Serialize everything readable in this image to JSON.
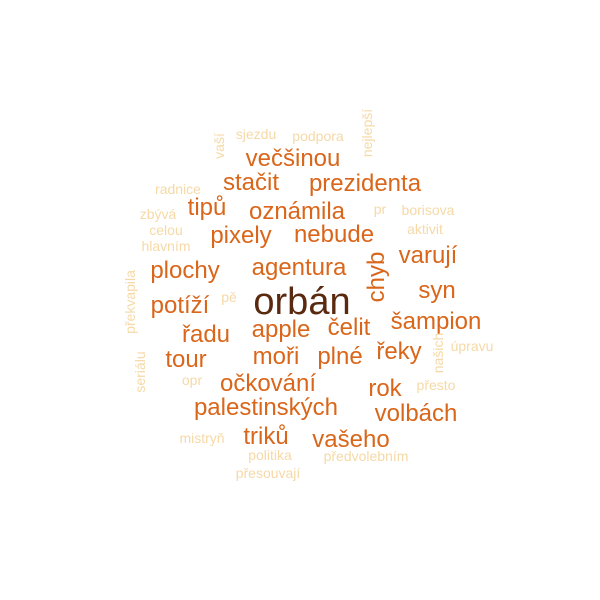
{
  "palette": {
    "dark": "#5a2a10",
    "strong": "#d9661a",
    "medium": "#e8832a",
    "light": "#f6d9a6"
  },
  "words": [
    {
      "text": "orbán",
      "weight": 1.0,
      "tone": "dark"
    },
    {
      "text": "večšinou",
      "weight": 0.6,
      "tone": "strong"
    },
    {
      "text": "stačit",
      "weight": 0.6,
      "tone": "strong"
    },
    {
      "text": "prezidenta",
      "weight": 0.6,
      "tone": "strong"
    },
    {
      "text": "tipů",
      "weight": 0.6,
      "tone": "strong"
    },
    {
      "text": "oznámila",
      "weight": 0.6,
      "tone": "strong"
    },
    {
      "text": "pixely",
      "weight": 0.6,
      "tone": "strong"
    },
    {
      "text": "nebude",
      "weight": 0.6,
      "tone": "strong"
    },
    {
      "text": "chyb",
      "weight": 0.6,
      "tone": "strong"
    },
    {
      "text": "varují",
      "weight": 0.6,
      "tone": "strong"
    },
    {
      "text": "plochy",
      "weight": 0.6,
      "tone": "strong"
    },
    {
      "text": "agentura",
      "weight": 0.6,
      "tone": "strong"
    },
    {
      "text": "syn",
      "weight": 0.6,
      "tone": "strong"
    },
    {
      "text": "potíží",
      "weight": 0.6,
      "tone": "strong"
    },
    {
      "text": "řadu",
      "weight": 0.6,
      "tone": "strong"
    },
    {
      "text": "apple",
      "weight": 0.6,
      "tone": "strong"
    },
    {
      "text": "čelit",
      "weight": 0.6,
      "tone": "strong"
    },
    {
      "text": "šampion",
      "weight": 0.6,
      "tone": "strong"
    },
    {
      "text": "tour",
      "weight": 0.6,
      "tone": "strong"
    },
    {
      "text": "moři",
      "weight": 0.6,
      "tone": "strong"
    },
    {
      "text": "plné",
      "weight": 0.6,
      "tone": "strong"
    },
    {
      "text": "řeky",
      "weight": 0.6,
      "tone": "strong"
    },
    {
      "text": "očkování",
      "weight": 0.6,
      "tone": "strong"
    },
    {
      "text": "rok",
      "weight": 0.6,
      "tone": "strong"
    },
    {
      "text": "palestinských",
      "weight": 0.6,
      "tone": "strong"
    },
    {
      "text": "volbách",
      "weight": 0.6,
      "tone": "strong"
    },
    {
      "text": "triků",
      "weight": 0.6,
      "tone": "strong"
    },
    {
      "text": "vašeho",
      "weight": 0.6,
      "tone": "strong"
    },
    {
      "text": "sjezdu",
      "weight": 0.3,
      "tone": "light"
    },
    {
      "text": "podpora",
      "weight": 0.3,
      "tone": "light"
    },
    {
      "text": "vaší",
      "weight": 0.3,
      "tone": "light"
    },
    {
      "text": "nejlepší",
      "weight": 0.3,
      "tone": "light"
    },
    {
      "text": "radnice",
      "weight": 0.3,
      "tone": "light"
    },
    {
      "text": "pr",
      "weight": 0.3,
      "tone": "light"
    },
    {
      "text": "borisova",
      "weight": 0.3,
      "tone": "light"
    },
    {
      "text": "zbývá",
      "weight": 0.3,
      "tone": "light"
    },
    {
      "text": "celou",
      "weight": 0.3,
      "tone": "light"
    },
    {
      "text": "aktivit",
      "weight": 0.3,
      "tone": "light"
    },
    {
      "text": "hlavním",
      "weight": 0.3,
      "tone": "light"
    },
    {
      "text": "překvapila",
      "weight": 0.3,
      "tone": "light"
    },
    {
      "text": "pě",
      "weight": 0.3,
      "tone": "light"
    },
    {
      "text": "našich",
      "weight": 0.3,
      "tone": "light"
    },
    {
      "text": "úpravu",
      "weight": 0.3,
      "tone": "light"
    },
    {
      "text": "seriálu",
      "weight": 0.3,
      "tone": "light"
    },
    {
      "text": "opr",
      "weight": 0.3,
      "tone": "light"
    },
    {
      "text": "přesto",
      "weight": 0.3,
      "tone": "light"
    },
    {
      "text": "mistryň",
      "weight": 0.3,
      "tone": "light"
    },
    {
      "text": "politika",
      "weight": 0.3,
      "tone": "light"
    },
    {
      "text": "předvolebním",
      "weight": 0.3,
      "tone": "light"
    },
    {
      "text": "přesouvají",
      "weight": 0.3,
      "tone": "light"
    }
  ]
}
